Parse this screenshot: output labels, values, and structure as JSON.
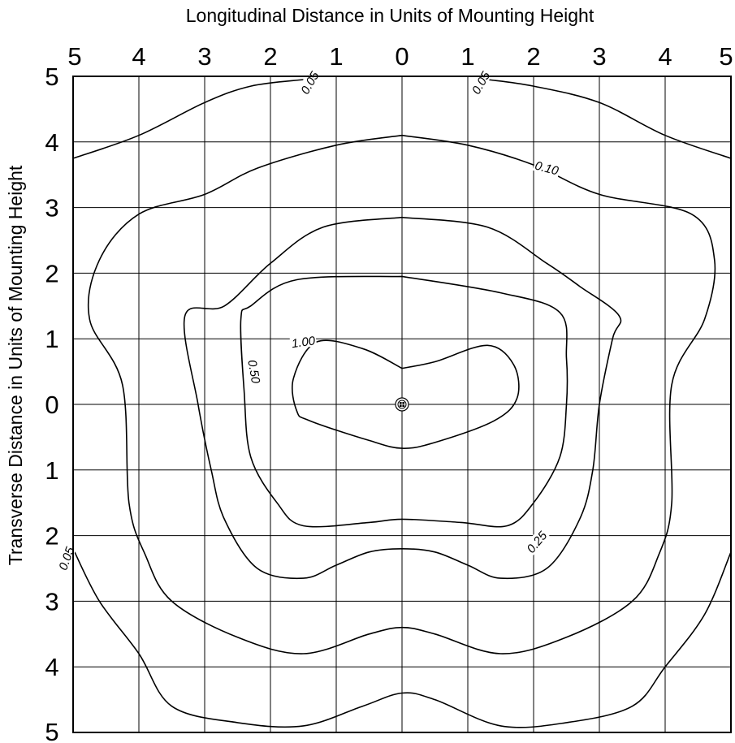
{
  "chart_data": {
    "type": "contour",
    "title": "Longitudinal Distance in Units of Mounting Height",
    "ylabel": "Transverse Distance in Units of Mounting Height",
    "x_ticks": [
      "5",
      "4",
      "3",
      "2",
      "1",
      "0",
      "1",
      "2",
      "3",
      "4",
      "5"
    ],
    "y_ticks": [
      "5",
      "4",
      "3",
      "2",
      "1",
      "0",
      "1",
      "2",
      "3",
      "4",
      "5"
    ],
    "xlim": [
      -5,
      5
    ],
    "ylim": [
      -5,
      5
    ],
    "grid": true,
    "luminaire": {
      "x": 0,
      "y": 0,
      "symbol": "luminaire-icon"
    },
    "contours": [
      {
        "label": "1.00",
        "label_at": [
          -1.5,
          0.95
        ],
        "label_angle": -8,
        "points": [
          [
            0,
            0.55
          ],
          [
            -0.6,
            0.85
          ],
          [
            -1.3,
            0.95
          ],
          [
            -1.65,
            0.4
          ],
          [
            -1.6,
            -0.1
          ],
          [
            -1.4,
            -0.25
          ],
          [
            -0.5,
            -0.55
          ],
          [
            0,
            -0.67
          ],
          [
            0.5,
            -0.58
          ],
          [
            1.4,
            -0.25
          ],
          [
            1.75,
            0.1
          ],
          [
            1.7,
            0.6
          ],
          [
            1.3,
            0.9
          ],
          [
            0.5,
            0.65
          ],
          [
            0,
            0.55
          ]
        ]
      },
      {
        "label": "0.50",
        "label_at": [
          -2.25,
          0.5
        ],
        "label_angle": 80,
        "points": [
          [
            0,
            1.95
          ],
          [
            -1.6,
            1.9
          ],
          [
            -2.3,
            1.5
          ],
          [
            -2.45,
            1.3
          ],
          [
            -2.4,
            0.2
          ],
          [
            -2.3,
            -0.8
          ],
          [
            -1.9,
            -1.5
          ],
          [
            -1.5,
            -1.85
          ],
          [
            -0.5,
            -1.8
          ],
          [
            0,
            -1.75
          ],
          [
            0.9,
            -1.8
          ],
          [
            1.6,
            -1.85
          ],
          [
            2.0,
            -1.5
          ],
          [
            2.4,
            -0.8
          ],
          [
            2.5,
            0
          ],
          [
            2.5,
            0.7
          ],
          [
            2.4,
            1.4
          ],
          [
            1.5,
            1.7
          ],
          [
            0,
            1.95
          ]
        ]
      },
      {
        "label": "0.25",
        "label_at": [
          2.05,
          -2.1
        ],
        "label_angle": -50,
        "points": [
          [
            0,
            2.85
          ],
          [
            -1.2,
            2.7
          ],
          [
            -2,
            2.15
          ],
          [
            -2.7,
            1.5
          ],
          [
            -3.3,
            1.35
          ],
          [
            -3.1,
            0
          ],
          [
            -2.9,
            -1.0
          ],
          [
            -2.7,
            -1.75
          ],
          [
            -2.2,
            -2.5
          ],
          [
            -1.5,
            -2.65
          ],
          [
            -1.0,
            -2.45
          ],
          [
            -0.5,
            -2.25
          ],
          [
            0,
            -2.2
          ],
          [
            0.5,
            -2.25
          ],
          [
            1.0,
            -2.45
          ],
          [
            1.5,
            -2.65
          ],
          [
            2.2,
            -2.5
          ],
          [
            2.7,
            -1.75
          ],
          [
            2.9,
            -1.0
          ],
          [
            3.0,
            0
          ],
          [
            3.2,
            1.0
          ],
          [
            3.3,
            1.35
          ],
          [
            2.7,
            1.8
          ],
          [
            2.2,
            2.15
          ],
          [
            1.3,
            2.7
          ],
          [
            0,
            2.85
          ]
        ]
      },
      {
        "label": "0.10",
        "label_at": [
          2.2,
          3.6
        ],
        "label_angle": 15,
        "points": [
          [
            0,
            4.1
          ],
          [
            -1.0,
            3.95
          ],
          [
            -2.2,
            3.6
          ],
          [
            -3.0,
            3.2
          ],
          [
            -4.0,
            2.9
          ],
          [
            -4.6,
            2.2
          ],
          [
            -4.75,
            1.3
          ],
          [
            -4.25,
            0.3
          ],
          [
            -4.15,
            -1.5
          ],
          [
            -3.9,
            -2.3
          ],
          [
            -3.5,
            -3.0
          ],
          [
            -2.5,
            -3.55
          ],
          [
            -1.5,
            -3.8
          ],
          [
            -0.5,
            -3.5
          ],
          [
            0,
            -3.4
          ],
          [
            0.5,
            -3.5
          ],
          [
            1.5,
            -3.8
          ],
          [
            2.5,
            -3.55
          ],
          [
            3.5,
            -3.0
          ],
          [
            3.9,
            -2.3
          ],
          [
            4.1,
            -1.5
          ],
          [
            4.1,
            0.3
          ],
          [
            4.6,
            1.3
          ],
          [
            4.75,
            2.2
          ],
          [
            4.4,
            2.9
          ],
          [
            3.0,
            3.2
          ],
          [
            2.0,
            3.65
          ],
          [
            1.0,
            3.95
          ],
          [
            0,
            4.1
          ]
        ]
      },
      {
        "label": "0.05",
        "label_at": [
          -1.4,
          4.9
        ],
        "label_angle": -60,
        "points": [
          [
            -5,
            3.75
          ],
          [
            -4.0,
            4.1
          ],
          [
            -3.0,
            4.6
          ],
          [
            -2.3,
            4.85
          ],
          [
            -1.5,
            4.95
          ]
        ]
      },
      {
        "label": "0.05",
        "label_at": [
          1.2,
          4.9
        ],
        "label_angle": -60,
        "points": [
          [
            1.3,
            4.95
          ],
          [
            2.0,
            4.85
          ],
          [
            3.0,
            4.6
          ],
          [
            4.0,
            4.1
          ],
          [
            5,
            3.75
          ]
        ]
      },
      {
        "label": "0.05",
        "label_at": [
          -5.1,
          -2.35
        ],
        "label_angle": -70,
        "points": [
          [
            -5,
            -2.2
          ],
          [
            -4.6,
            -3.0
          ],
          [
            -4.0,
            -3.8
          ],
          [
            -3.5,
            -4.6
          ],
          [
            -2.5,
            -4.85
          ],
          [
            -1.5,
            -4.9
          ],
          [
            -0.6,
            -4.6
          ],
          [
            0,
            -4.4
          ],
          [
            0.5,
            -4.5
          ],
          [
            1.5,
            -4.9
          ],
          [
            2.5,
            -4.85
          ],
          [
            3.5,
            -4.6
          ],
          [
            4.0,
            -4.0
          ],
          [
            4.6,
            -3.2
          ],
          [
            5,
            -2.25
          ]
        ]
      }
    ]
  }
}
